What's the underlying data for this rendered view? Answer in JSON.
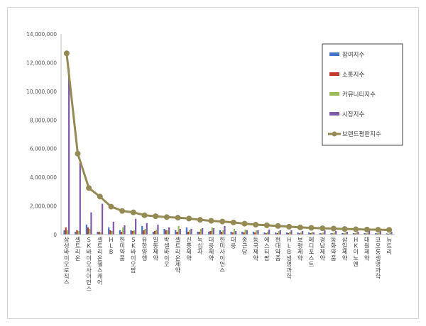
{
  "chart_data": {
    "type": "bar",
    "title": "",
    "xlabel": "",
    "ylabel": "",
    "ylim": [
      0,
      14000000
    ],
    "grid": false,
    "legend_position": "top-right",
    "yticks": [
      0,
      2000000,
      4000000,
      6000000,
      8000000,
      10000000,
      12000000,
      14000000
    ],
    "ytick_labels": [
      "0",
      "2,000,000",
      "4,000,000",
      "6,000,000",
      "8,000,000",
      "10,000,000",
      "12,000,000",
      "14,000,000"
    ],
    "categories": [
      "삼성바이오로직스",
      "셀트리온",
      "SK바이오사이언스",
      "셀트리온헬스케어",
      "HLB",
      "한미약품",
      "SK바이오팜",
      "유한양행",
      "일동제약",
      "박셀바이오",
      "셀트리온제약",
      "신풍제약",
      "녹십자",
      "대웅제약",
      "한미사이언스",
      "대웅",
      "종근당",
      "동국제약",
      "에스티팜",
      "현대약품",
      "HLB생명과학",
      "보령제약",
      "메디포스트",
      "경남제약",
      "동화약품",
      "삼일제약",
      "HK이노엔",
      "대원제약",
      "코오롱생명과학",
      "뉴트리"
    ],
    "series": [
      {
        "name": "참여지수",
        "color": "#4472C4",
        "values": [
          300000,
          200000,
          700000,
          200000,
          500000,
          300000,
          300000,
          600000,
          200000,
          400000,
          300000,
          500000,
          200000,
          200000,
          300000,
          200000,
          200000,
          200000,
          150000,
          150000,
          150000,
          150000,
          150000,
          100000,
          100000,
          100000,
          100000,
          100000,
          100000,
          80000
        ]
      },
      {
        "name": "소통지수",
        "color": "#C0392B",
        "values": [
          500000,
          300000,
          500000,
          200000,
          300000,
          200000,
          250000,
          300000,
          250000,
          300000,
          200000,
          200000,
          200000,
          250000,
          200000,
          150000,
          150000,
          150000,
          100000,
          100000,
          100000,
          100000,
          100000,
          80000,
          80000,
          80000,
          80000,
          80000,
          80000,
          60000
        ]
      },
      {
        "name": "커뮤니티지수",
        "color": "#9BBB59",
        "values": [
          300000,
          250000,
          400000,
          150000,
          250000,
          500000,
          300000,
          400000,
          350000,
          300000,
          600000,
          300000,
          400000,
          500000,
          300000,
          400000,
          350000,
          300000,
          200000,
          250000,
          200000,
          150000,
          200000,
          150000,
          150000,
          150000,
          150000,
          120000,
          120000,
          100000
        ]
      },
      {
        "name": "시장지수",
        "color": "#7E5AA8",
        "values": [
          11500000,
          5000000,
          1550000,
          2150000,
          900000,
          650000,
          1100000,
          800000,
          700000,
          500000,
          400000,
          400000,
          450000,
          450000,
          600000,
          250000,
          300000,
          300000,
          350000,
          300000,
          300000,
          250000,
          150000,
          300000,
          250000,
          200000,
          200000,
          300000,
          250000,
          200000
        ]
      }
    ],
    "line_series": {
      "name": "브랜드평판지수",
      "color": "#948A54",
      "values": [
        12650000,
        5650000,
        3250000,
        2650000,
        1950000,
        1650000,
        1550000,
        1350000,
        1280000,
        1220000,
        1180000,
        1120000,
        1030000,
        960000,
        910000,
        850000,
        760000,
        690000,
        650000,
        600000,
        550000,
        500000,
        470000,
        440000,
        420000,
        390000,
        370000,
        350000,
        340000,
        330000
      ]
    }
  }
}
